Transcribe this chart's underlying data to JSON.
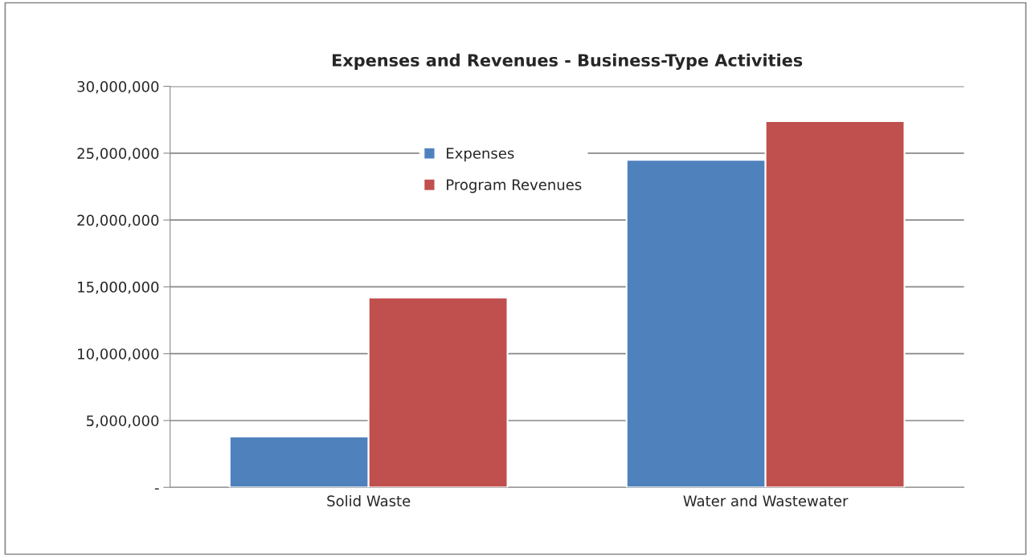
{
  "chart_data": {
    "type": "bar",
    "title": "Expenses and Revenues - Business-Type Activities",
    "categories": [
      "Solid Waste",
      "Water and Wastewater"
    ],
    "series": [
      {
        "name": "Expenses",
        "color": "#4f81bd",
        "values": [
          3800000,
          24500000
        ]
      },
      {
        "name": "Program Revenues",
        "color": "#c0504d",
        "values": [
          14200000,
          27400000
        ]
      }
    ],
    "ylim": [
      0,
      30000000
    ],
    "yticks": [
      {
        "value": 0,
        "label": "-"
      },
      {
        "value": 5000000,
        "label": "5,000,000"
      },
      {
        "value": 10000000,
        "label": "10,000,000"
      },
      {
        "value": 15000000,
        "label": "15,000,000"
      },
      {
        "value": 20000000,
        "label": "20,000,000"
      },
      {
        "value": 25000000,
        "label": "25,000,000"
      },
      {
        "value": 30000000,
        "label": "30,000,000"
      }
    ],
    "grid": "y",
    "legend": "top"
  }
}
